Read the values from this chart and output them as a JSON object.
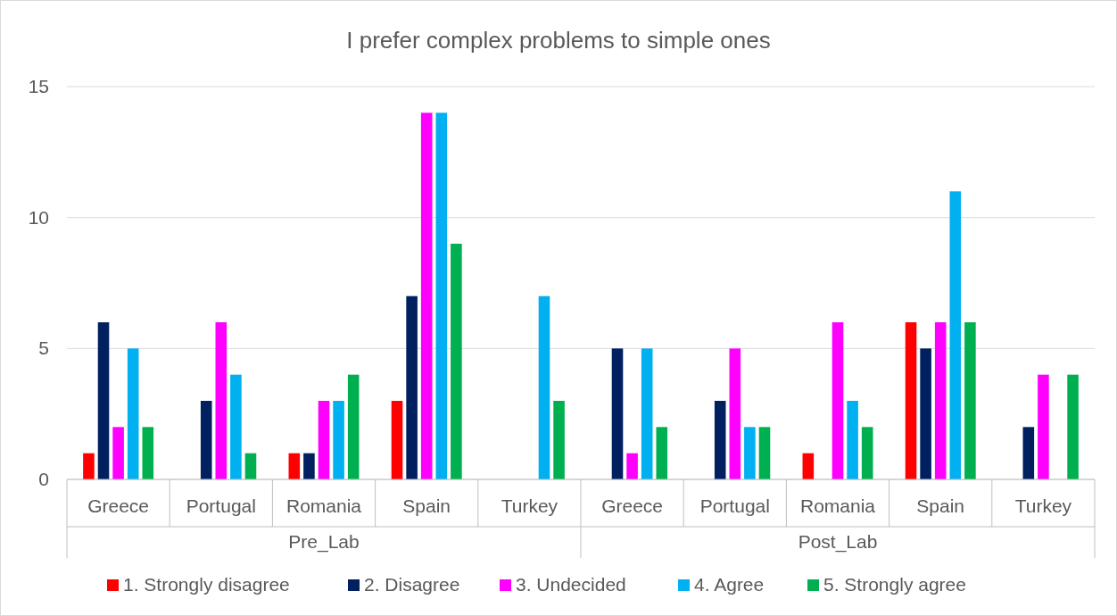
{
  "chart_data": {
    "type": "bar",
    "title": "I prefer complex problems to simple ones",
    "categories": [
      "Greece",
      "Portugal",
      "Romania",
      "Spain",
      "Turkey",
      "Greece",
      "Portugal",
      "Romania",
      "Spain",
      "Turkey"
    ],
    "annotations": [
      "Pre_Lab",
      "Post_Lab"
    ],
    "series": [
      {
        "name": "1. Strongly disagree",
        "color": "#ff0000",
        "values": [
          1,
          null,
          1,
          3,
          null,
          null,
          null,
          1,
          6,
          null
        ]
      },
      {
        "name": "2. Disagree",
        "color": "#002060",
        "values": [
          6,
          3,
          1,
          7,
          null,
          5,
          3,
          null,
          5,
          2
        ]
      },
      {
        "name": "3. Undecided",
        "color": "#ff00ff",
        "values": [
          2,
          6,
          3,
          14,
          null,
          1,
          5,
          6,
          6,
          4
        ]
      },
      {
        "name": "4. Agree",
        "color": "#00b0f0",
        "values": [
          5,
          4,
          3,
          14,
          7,
          5,
          2,
          3,
          11,
          null
        ]
      },
      {
        "name": "5. Strongly agree",
        "color": "#00b050",
        "values": [
          2,
          1,
          4,
          9,
          3,
          2,
          2,
          2,
          6,
          4
        ]
      }
    ],
    "ylim": [
      0,
      15
    ],
    "yticks": [
      0,
      5,
      10,
      15
    ],
    "grid": "y",
    "legend": "bottom"
  }
}
